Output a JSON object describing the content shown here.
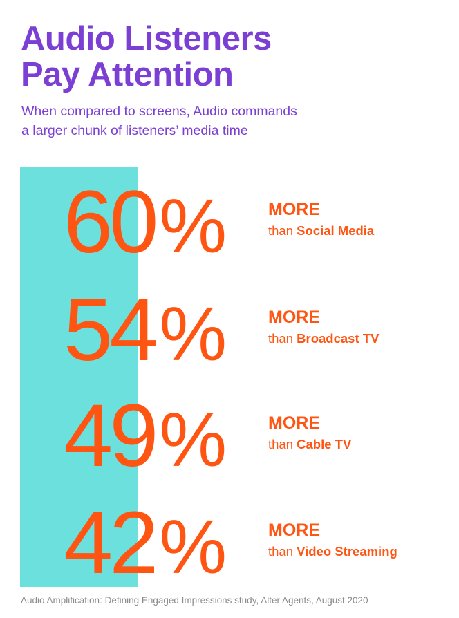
{
  "title": {
    "line1": "Audio Listeners",
    "line2": "Pay Attention"
  },
  "subtitle": {
    "line1": "When compared to screens, Audio commands",
    "line2": "a larger chunk of listeners’ media time"
  },
  "stats": [
    {
      "value": "60",
      "unit": "%",
      "more": "MORE",
      "prefix": "than",
      "target": "Social Media"
    },
    {
      "value": "54",
      "unit": "%",
      "more": "MORE",
      "prefix": "than",
      "target": "Broadcast TV"
    },
    {
      "value": "49",
      "unit": "%",
      "more": "MORE",
      "prefix": "than",
      "target": "Cable TV"
    },
    {
      "value": "42",
      "unit": "%",
      "more": "MORE",
      "prefix": "than",
      "target": "Video Streaming"
    }
  ],
  "footer": "Audio Amplification: Defining Engaged Impressions study, Alter Agents, August 2020",
  "colors": {
    "title": "#7b3fd4",
    "accent": "#ff5512",
    "teal": "#6be0dc",
    "footer": "#8a8a8a"
  }
}
